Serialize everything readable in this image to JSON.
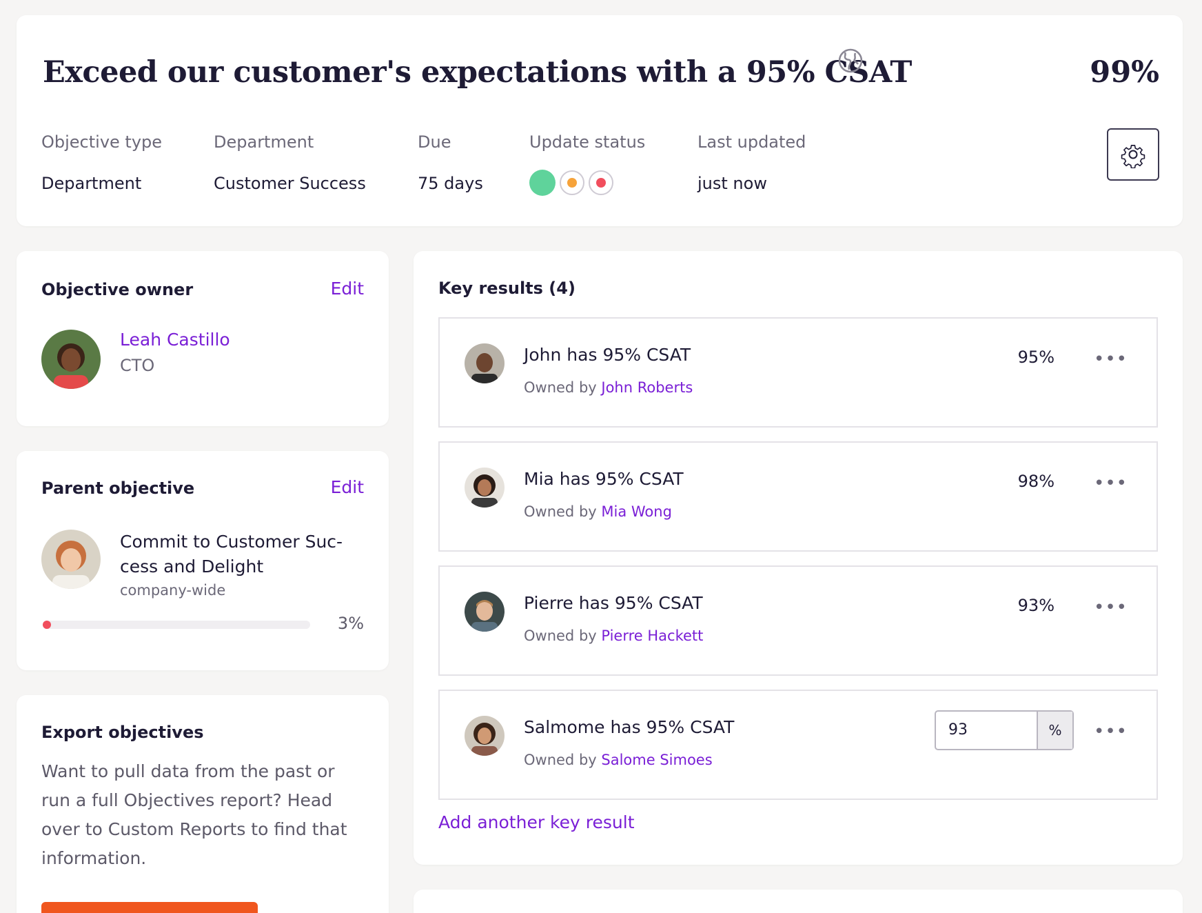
{
  "header": {
    "title": "Exceed our customer's expectations with a 95% CSAT",
    "progress_label": "99%",
    "meta": [
      {
        "label": "Objective type",
        "value": "Department"
      },
      {
        "label": "Department",
        "value": "Customer Success"
      },
      {
        "label": "Due",
        "value": "75 days"
      },
      {
        "label": "Update status",
        "value": ""
      },
      {
        "label": "Last updated",
        "value": "just now"
      }
    ],
    "status_colors": {
      "on_track": "#5fd39b",
      "at_risk": "#f6a33a",
      "off_track": "#f14e5d"
    }
  },
  "owner": {
    "heading": "Objective owner",
    "edit_label": "Edit",
    "name": "Leah Castillo",
    "role": "CTO"
  },
  "parent": {
    "heading": "Parent objective",
    "edit_label": "Edit",
    "title_line1": "Commit to Customer Suc-",
    "title_line2": "cess and Delight",
    "scope": "company-wide",
    "progress_label": "3%",
    "progress_value": 0.03
  },
  "export": {
    "heading": "Export objectives",
    "body": "Want to pull data from the past or run a full Objectives report? Head over to Custom Reports to find that information."
  },
  "key_results": {
    "heading": "Key results (4)",
    "owned_by_prefix": "Owned by",
    "items": [
      {
        "title": "John has 95% CSAT",
        "owner": "John Roberts",
        "progress": "95%"
      },
      {
        "title": "Mia has 95% CSAT",
        "owner": "Mia Wong",
        "progress": "98%"
      },
      {
        "title": "Pierre has 95% CSAT",
        "owner": "Pierre Hackett",
        "progress": "93%"
      },
      {
        "title": "Salmome has 95% CSAT",
        "owner": "Salome Simoes",
        "input_value": "93",
        "input_unit": "%"
      }
    ],
    "add_label": "Add another key result",
    "more_label": "•••"
  },
  "accent_color": "#7a1fd6",
  "button_color": "#f0561e"
}
